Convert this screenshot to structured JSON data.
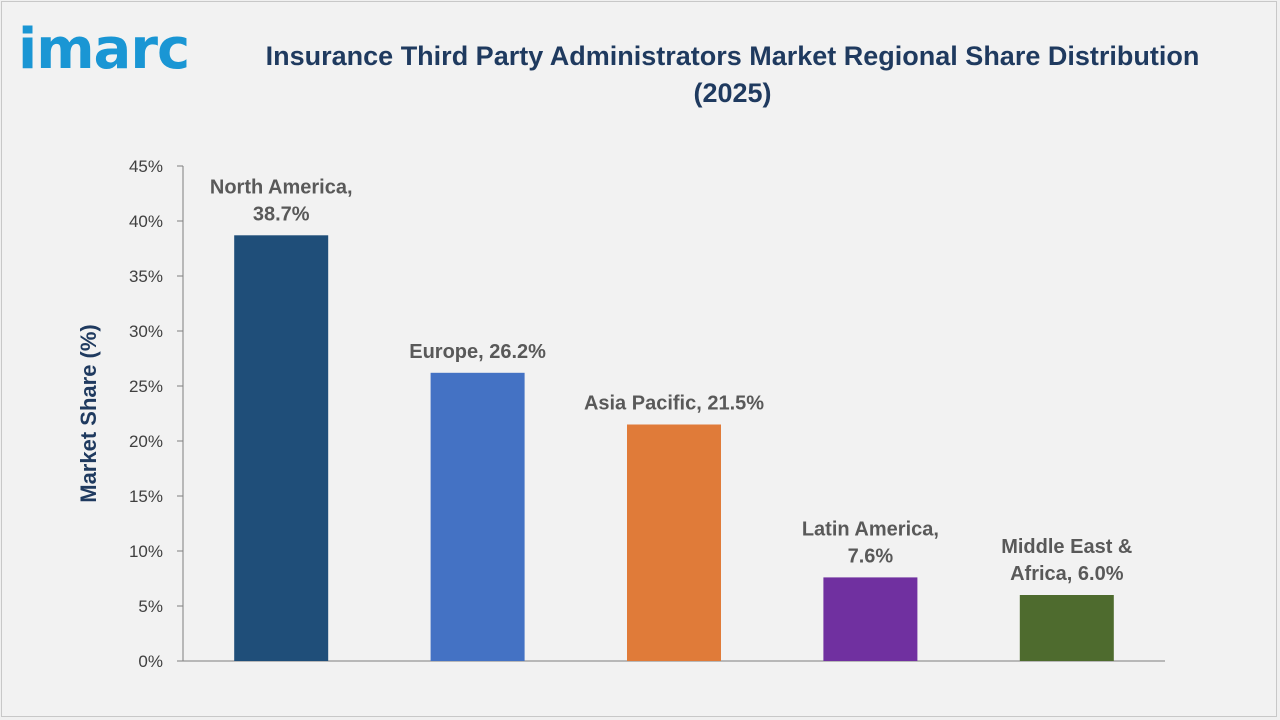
{
  "header": {
    "logo_text": "imarc",
    "title": "Insurance Third Party Administrators Market Regional Share Distribution (2025)"
  },
  "chart_data": {
    "type": "bar",
    "title": "Insurance Third Party Administrators Market Regional Share Distribution (2025)",
    "xlabel": "",
    "ylabel": "Market Share (%)",
    "ylim": [
      0,
      45
    ],
    "yticks": [
      "0%",
      "5%",
      "10%",
      "15%",
      "20%",
      "25%",
      "30%",
      "35%",
      "40%",
      "45%"
    ],
    "grid": false,
    "categories": [
      "North America",
      "Europe",
      "Asia Pacific",
      "Latin America",
      "Middle East & Africa"
    ],
    "values": [
      38.7,
      26.2,
      21.5,
      7.6,
      6.0
    ],
    "data_labels": [
      [
        "North America,",
        "38.7%"
      ],
      [
        "Europe, 26.2%"
      ],
      [
        "Asia Pacific, 21.5%"
      ],
      [
        "Latin America,",
        "7.6%"
      ],
      [
        "Middle East &",
        "Africa, 6.0%"
      ]
    ],
    "colors": [
      "#1f4e79",
      "#4472c4",
      "#e07b39",
      "#7030a0",
      "#4e6b2e"
    ]
  }
}
